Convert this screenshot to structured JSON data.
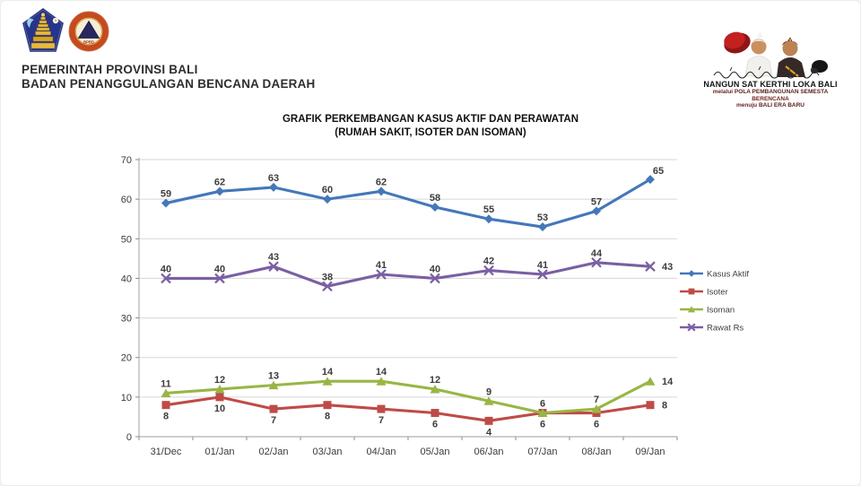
{
  "page": {
    "background": "#ffffff"
  },
  "header": {
    "org_line1": "PEMERINTAH PROVINSI BALI",
    "org_line2": "BADAN PENANGGULANGAN BENCANA DAERAH",
    "logos": [
      {
        "name": "bali-provincial-emblem"
      },
      {
        "name": "bpbd-logo"
      }
    ]
  },
  "campaign": {
    "title": "NANGUN SAT KERTHI LOKA BALI",
    "line2_small": "melalui",
    "line2_caps": "POLA PEMBANGUNAN SEMESTA",
    "line3_caps": "BERENCANA",
    "line4_small": "menuju",
    "line4_caps": "BALI ERA BARU"
  },
  "chart_data": {
    "type": "line",
    "title": "GRAFIK PERKEMBANGAN KASUS AKTIF DAN PERAWATAN",
    "subtitle": "(RUMAH SAKIT, ISOTER DAN ISOMAN)",
    "categories": [
      "31/Dec",
      "01/Jan",
      "02/Jan",
      "03/Jan",
      "04/Jan",
      "05/Jan",
      "06/Jan",
      "07/Jan",
      "08/Jan",
      "09/Jan"
    ],
    "series": [
      {
        "name": "Kasus Aktif",
        "color": "#4478b9",
        "marker": "diamond",
        "values": [
          59,
          62,
          63,
          60,
          62,
          58,
          55,
          53,
          57,
          65
        ]
      },
      {
        "name": "Isoter",
        "color": "#bf4b47",
        "marker": "square",
        "values": [
          8,
          10,
          7,
          8,
          7,
          6,
          4,
          6,
          6,
          8
        ]
      },
      {
        "name": "Isoman",
        "color": "#98b645",
        "marker": "triangle",
        "values": [
          11,
          12,
          13,
          14,
          14,
          12,
          9,
          6,
          7,
          14
        ]
      },
      {
        "name": "Rawat Rs",
        "color": "#7a5fa2",
        "marker": "x",
        "values": [
          40,
          40,
          43,
          38,
          41,
          40,
          42,
          41,
          44,
          43
        ]
      }
    ],
    "ylim": [
      0,
      70
    ],
    "yticks": [
      0,
      10,
      20,
      30,
      40,
      50,
      60,
      70
    ],
    "grid": true,
    "legend_position": "right",
    "data_labels": true,
    "label_color": "#3d3d3d",
    "grid_color": "#d6d6d6",
    "axis_color": "#b0b0b0",
    "tick_color": "#8c8c8c"
  }
}
